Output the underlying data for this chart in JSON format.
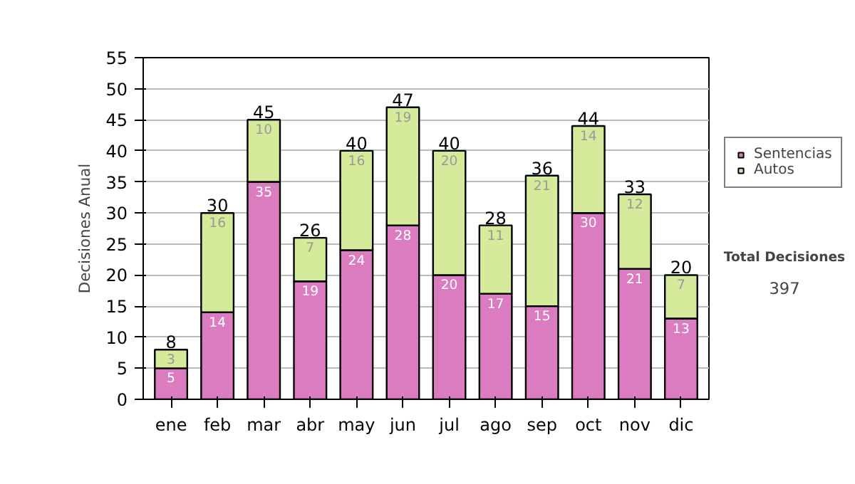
{
  "chart_data": {
    "type": "bar",
    "stacked": true,
    "ylabel": "Decisiones Anual",
    "categories": [
      "ene",
      "feb",
      "mar",
      "abr",
      "may",
      "jun",
      "jul",
      "ago",
      "sep",
      "oct",
      "nov",
      "dic"
    ],
    "series": [
      {
        "name": "Sentencias",
        "color": "#db7cc0",
        "values": [
          5,
          14,
          35,
          19,
          24,
          28,
          20,
          17,
          15,
          30,
          21,
          13
        ]
      },
      {
        "name": "Autos",
        "color": "#d5ea9a",
        "values": [
          3,
          16,
          10,
          7,
          16,
          19,
          20,
          11,
          21,
          14,
          12,
          7
        ]
      }
    ],
    "totals": [
      "8",
      "30",
      "45",
      "26",
      "40",
      "47",
      "40",
      "28",
      "36",
      "44",
      "33",
      "20"
    ],
    "data_labels": true,
    "ylim": [
      0,
      55
    ],
    "yticks": [
      0,
      5,
      10,
      15,
      20,
      25,
      30,
      35,
      40,
      45,
      50,
      55
    ],
    "grid": "y",
    "legend": "right",
    "annotations": [
      "Total Decisiones",
      "397"
    ]
  }
}
